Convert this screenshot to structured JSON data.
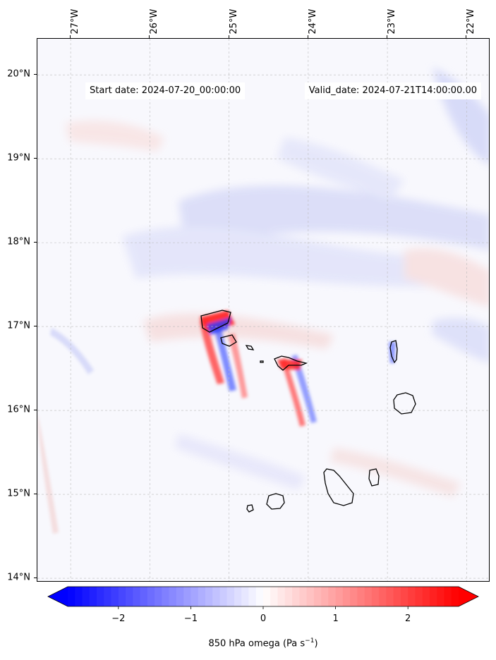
{
  "map": {
    "start_label": "Start date: 2024-07-20_00:00:00",
    "valid_label": "Valid_date: 2024-07-21T14:00:00.00",
    "extent": {
      "lon_min": -27.42,
      "lon_max": -21.7,
      "lat_min": 13.95,
      "lat_max": 20.43
    },
    "longitude_ticks": [
      {
        "value": -27,
        "label": "27°W"
      },
      {
        "value": -26,
        "label": "26°W"
      },
      {
        "value": -25,
        "label": "25°W"
      },
      {
        "value": -24,
        "label": "24°W"
      },
      {
        "value": -23,
        "label": "23°W"
      },
      {
        "value": -22,
        "label": "22°W"
      }
    ],
    "latitude_ticks": [
      {
        "value": 20,
        "label": "20°N"
      },
      {
        "value": 19,
        "label": "19°N"
      },
      {
        "value": 18,
        "label": "18°N"
      },
      {
        "value": 17,
        "label": "17°N"
      },
      {
        "value": 16,
        "label": "16°N"
      },
      {
        "value": 15,
        "label": "15°N"
      },
      {
        "value": 14,
        "label": "14°N"
      }
    ],
    "gridlines": true,
    "field_colormap": "bwr",
    "coastline_color": "#000000"
  },
  "colorbar": {
    "title_main": "850 hPa omega (Pa s",
    "title_sup": "−1",
    "title_end": ")",
    "min": -2.7,
    "max": 2.7,
    "ticks": [
      {
        "value": -2,
        "label": "−2"
      },
      {
        "value": -1,
        "label": "−1"
      },
      {
        "value": 0,
        "label": "0"
      },
      {
        "value": 1,
        "label": "1"
      },
      {
        "value": 2,
        "label": "2"
      }
    ],
    "extend": "both",
    "colors": {
      "low": "#0000ff",
      "mid": "#ffffff",
      "high": "#ff0000"
    }
  }
}
